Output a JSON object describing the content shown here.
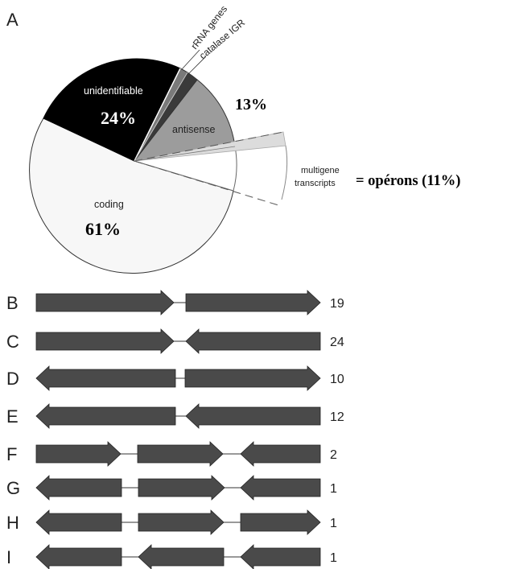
{
  "panel_a": {
    "letter": "A",
    "labels": {
      "rrna": "rRNA genes",
      "catalase": "catalase IGR",
      "unidentifiable": "unidentifiable",
      "unidentifiable_pct": "24%",
      "antisense": "antisense",
      "antisense_pct": "13%",
      "multigene_1": "multigene",
      "multigene_2": "transcripts",
      "operons": "= opérons (11%)",
      "coding": "coding",
      "coding_pct": "61%"
    },
    "colors": {
      "unidentifiable": "#000000",
      "rrna": "#7a7a7a",
      "catalase": "#3a3a3a",
      "antisense": "#9c9c9c",
      "coding": "#f7f7f7",
      "multigene": "#ffffff",
      "highlight": "#dcdcdc"
    }
  },
  "panel_b": {
    "arrow_color": "#4a4a4a",
    "rows": [
      {
        "letter": "B",
        "count": "19"
      },
      {
        "letter": "C",
        "count": "24"
      },
      {
        "letter": "D",
        "count": "10"
      },
      {
        "letter": "E",
        "count": "12"
      },
      {
        "letter": "F",
        "count": "2"
      },
      {
        "letter": "G",
        "count": "1"
      },
      {
        "letter": "H",
        "count": "1"
      },
      {
        "letter": "I",
        "count": "1"
      }
    ]
  }
}
